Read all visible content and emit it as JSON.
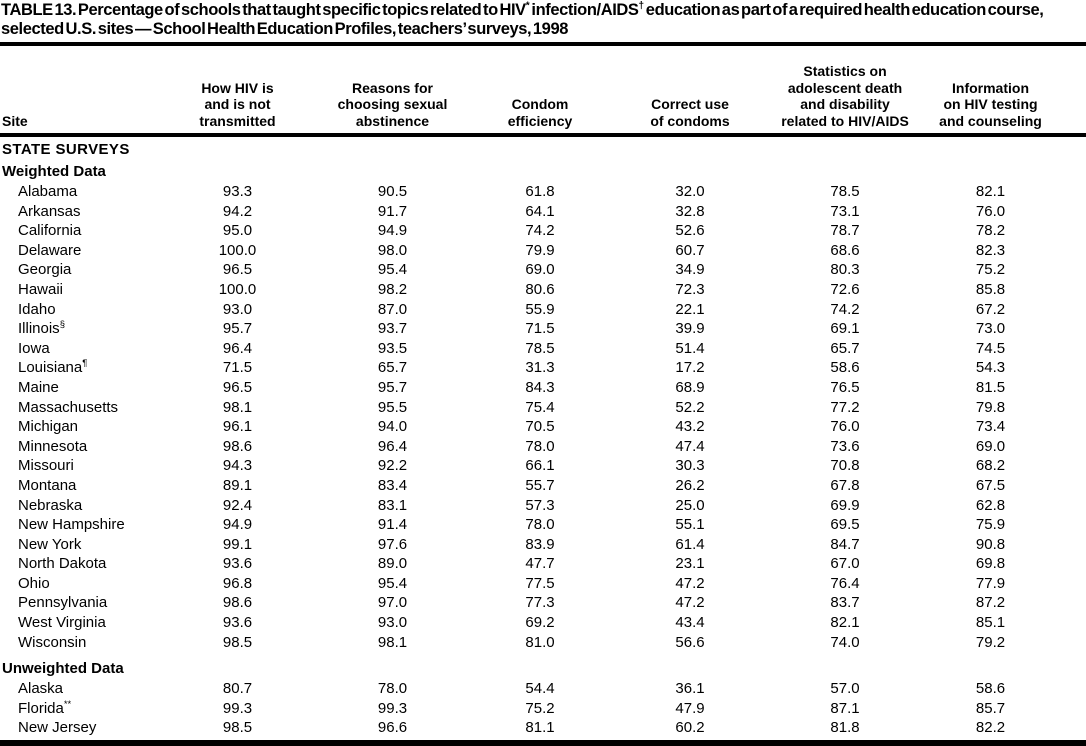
{
  "title": {
    "part1": "TABLE 13. Percentage of schools that taught specific topics related to HIV",
    "footnote1": "*",
    "part2": " infection/AIDS",
    "footnote2": "†",
    "part3": " education as part of a required health education course, selected U.S. sites — School Health Education Profiles, teachers’ surveys, 1998"
  },
  "table": {
    "site_column_header": "Site",
    "columns": [
      {
        "lines": [
          "How HIV is",
          "and is not",
          "transmitted"
        ]
      },
      {
        "lines": [
          "Reasons for",
          "choosing sexual",
          "abstinence"
        ]
      },
      {
        "lines": [
          "Condom",
          "efficiency"
        ]
      },
      {
        "lines": [
          "Correct use",
          "of condoms"
        ]
      },
      {
        "lines": [
          "Statistics on",
          "adolescent death",
          "and disability",
          "related to HIV/AIDS"
        ]
      },
      {
        "lines": [
          "Information",
          "on HIV testing",
          "and counseling"
        ]
      }
    ],
    "sections": [
      {
        "header": "STATE SURVEYS",
        "groups": [
          {
            "label": "Weighted Data",
            "rows": [
              {
                "site": "Alabama",
                "marker": "",
                "values": [
                  "93.3",
                  "90.5",
                  "61.8",
                  "32.0",
                  "78.5",
                  "82.1"
                ]
              },
              {
                "site": "Arkansas",
                "marker": "",
                "values": [
                  "94.2",
                  "91.7",
                  "64.1",
                  "32.8",
                  "73.1",
                  "76.0"
                ]
              },
              {
                "site": "California",
                "marker": "",
                "values": [
                  "95.0",
                  "94.9",
                  "74.2",
                  "52.6",
                  "78.7",
                  "78.2"
                ]
              },
              {
                "site": "Delaware",
                "marker": "",
                "values": [
                  "100.0",
                  "98.0",
                  "79.9",
                  "60.7",
                  "68.6",
                  "82.3"
                ]
              },
              {
                "site": "Georgia",
                "marker": "",
                "values": [
                  "96.5",
                  "95.4",
                  "69.0",
                  "34.9",
                  "80.3",
                  "75.2"
                ]
              },
              {
                "site": "Hawaii",
                "marker": "",
                "values": [
                  "100.0",
                  "98.2",
                  "80.6",
                  "72.3",
                  "72.6",
                  "85.8"
                ]
              },
              {
                "site": "Idaho",
                "marker": "",
                "values": [
                  "93.0",
                  "87.0",
                  "55.9",
                  "22.1",
                  "74.2",
                  "67.2"
                ]
              },
              {
                "site": "Illinois",
                "marker": "§",
                "values": [
                  "95.7",
                  "93.7",
                  "71.5",
                  "39.9",
                  "69.1",
                  "73.0"
                ]
              },
              {
                "site": "Iowa",
                "marker": "",
                "values": [
                  "96.4",
                  "93.5",
                  "78.5",
                  "51.4",
                  "65.7",
                  "74.5"
                ]
              },
              {
                "site": "Louisiana",
                "marker": "¶",
                "values": [
                  "71.5",
                  "65.7",
                  "31.3",
                  "17.2",
                  "58.6",
                  "54.3"
                ]
              },
              {
                "site": "Maine",
                "marker": "",
                "values": [
                  "96.5",
                  "95.7",
                  "84.3",
                  "68.9",
                  "76.5",
                  "81.5"
                ]
              },
              {
                "site": "Massachusetts",
                "marker": "",
                "values": [
                  "98.1",
                  "95.5",
                  "75.4",
                  "52.2",
                  "77.2",
                  "79.8"
                ]
              },
              {
                "site": "Michigan",
                "marker": "",
                "values": [
                  "96.1",
                  "94.0",
                  "70.5",
                  "43.2",
                  "76.0",
                  "73.4"
                ]
              },
              {
                "site": "Minnesota",
                "marker": "",
                "values": [
                  "98.6",
                  "96.4",
                  "78.0",
                  "47.4",
                  "73.6",
                  "69.0"
                ]
              },
              {
                "site": "Missouri",
                "marker": "",
                "values": [
                  "94.3",
                  "92.2",
                  "66.1",
                  "30.3",
                  "70.8",
                  "68.2"
                ]
              },
              {
                "site": "Montana",
                "marker": "",
                "values": [
                  "89.1",
                  "83.4",
                  "55.7",
                  "26.2",
                  "67.8",
                  "67.5"
                ]
              },
              {
                "site": "Nebraska",
                "marker": "",
                "values": [
                  "92.4",
                  "83.1",
                  "57.3",
                  "25.0",
                  "69.9",
                  "62.8"
                ]
              },
              {
                "site": "New Hampshire",
                "marker": "",
                "values": [
                  "94.9",
                  "91.4",
                  "78.0",
                  "55.1",
                  "69.5",
                  "75.9"
                ]
              },
              {
                "site": "New York",
                "marker": "",
                "values": [
                  "99.1",
                  "97.6",
                  "83.9",
                  "61.4",
                  "84.7",
                  "90.8"
                ]
              },
              {
                "site": "North Dakota",
                "marker": "",
                "values": [
                  "93.6",
                  "89.0",
                  "47.7",
                  "23.1",
                  "67.0",
                  "69.8"
                ]
              },
              {
                "site": "Ohio",
                "marker": "",
                "values": [
                  "96.8",
                  "95.4",
                  "77.5",
                  "47.2",
                  "76.4",
                  "77.9"
                ]
              },
              {
                "site": "Pennsylvania",
                "marker": "",
                "values": [
                  "98.6",
                  "97.0",
                  "77.3",
                  "47.2",
                  "83.7",
                  "87.2"
                ]
              },
              {
                "site": "West Virginia",
                "marker": "",
                "values": [
                  "93.6",
                  "93.0",
                  "69.2",
                  "43.4",
                  "82.1",
                  "85.1"
                ]
              },
              {
                "site": "Wisconsin",
                "marker": "",
                "values": [
                  "98.5",
                  "98.1",
                  "81.0",
                  "56.6",
                  "74.0",
                  "79.2"
                ]
              }
            ]
          },
          {
            "label": "Unweighted Data",
            "rows": [
              {
                "site": "Alaska",
                "marker": "",
                "values": [
                  "80.7",
                  "78.0",
                  "54.4",
                  "36.1",
                  "57.0",
                  "58.6"
                ]
              },
              {
                "site": "Florida",
                "marker": "**",
                "values": [
                  "99.3",
                  "99.3",
                  "75.2",
                  "47.9",
                  "87.1",
                  "85.7"
                ]
              },
              {
                "site": "New Jersey",
                "marker": "",
                "values": [
                  "98.5",
                  "96.6",
                  "81.1",
                  "60.2",
                  "81.8",
                  "82.2"
                ]
              }
            ]
          }
        ]
      }
    ]
  }
}
